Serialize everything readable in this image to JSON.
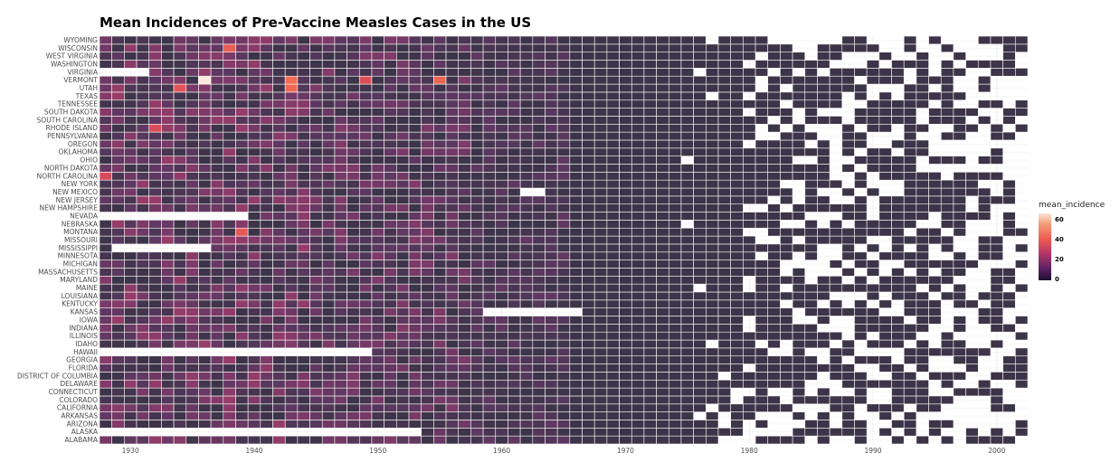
{
  "chart_data": {
    "type": "heatmap",
    "title": "Mean Incidences of Pre-Vaccine Measles Cases in the US",
    "xlabel": "",
    "ylabel": "",
    "x_range": [
      1928,
      2003
    ],
    "x_ticks": [
      "1930",
      "1940",
      "1950",
      "1960",
      "1970",
      "1980",
      "1990",
      "2000"
    ],
    "states": [
      "ALABAMA",
      "ALASKA",
      "ARIZONA",
      "ARKANSAS",
      "CALIFORNIA",
      "COLORADO",
      "CONNECTICUT",
      "DELAWARE",
      "DISTRICT OF COLUMBIA",
      "FLORIDA",
      "GEORGIA",
      "HAWAII",
      "IDAHO",
      "ILLINOIS",
      "INDIANA",
      "IOWA",
      "KANSAS",
      "KENTUCKY",
      "LOUISIANA",
      "MAINE",
      "MARYLAND",
      "MASSACHUSETTS",
      "MICHIGAN",
      "MINNESOTA",
      "MISSISSIPPI",
      "MISSOURI",
      "MONTANA",
      "NEBRASKA",
      "NEVADA",
      "NEW HAMPSHIRE",
      "NEW JERSEY",
      "NEW MEXICO",
      "NEW YORK",
      "NORTH CAROLINA",
      "NORTH DAKOTA",
      "OHIO",
      "OKLAHOMA",
      "OREGON",
      "PENNSYLVANIA",
      "RHODE ISLAND",
      "SOUTH CAROLINA",
      "SOUTH DAKOTA",
      "TENNESSEE",
      "TEXAS",
      "UTAH",
      "VERMONT",
      "VIRGINIA",
      "WASHINGTON",
      "WEST VIRGINIA",
      "WISCONSIN",
      "WYOMING"
    ],
    "legend": {
      "title": "mean_incidence",
      "ticks": [
        0,
        20,
        40,
        60
      ],
      "range": [
        0,
        67
      ],
      "placement": "right"
    },
    "notable_values": [
      {
        "state": "VERMONT",
        "year": 1936,
        "value": 67
      },
      {
        "state": "VERMONT",
        "year": 1943,
        "value": 45
      },
      {
        "state": "UTAH",
        "year": 1943,
        "value": 43
      },
      {
        "state": "WISCONSIN",
        "year": 1938,
        "value": 40
      },
      {
        "state": "VERMONT",
        "year": 1955,
        "value": 42
      },
      {
        "state": "MONTANA",
        "year": 1939,
        "value": 38
      },
      {
        "state": "UTAH",
        "year": 1934,
        "value": 36
      },
      {
        "state": "VERMONT",
        "year": 1949,
        "value": 34
      },
      {
        "state": "RHODE ISLAND",
        "year": 1932,
        "value": 33
      },
      {
        "state": "NORTH CAROLINA",
        "year": 1928,
        "value": 32
      }
    ],
    "missing": [
      {
        "state": "VIRGINIA",
        "from": 1928,
        "to": 1931
      },
      {
        "state": "NEVADA",
        "from": 1928,
        "to": 1939
      },
      {
        "state": "MISSISSIPPI",
        "from": 1929,
        "to": 1936
      },
      {
        "state": "HAWAII",
        "from": 1928,
        "to": 1949
      },
      {
        "state": "ALASKA",
        "from": 1928,
        "to": 1953
      },
      {
        "state": "KANSAS",
        "from": 1959,
        "to": 1966
      },
      {
        "state": "NEW MEXICO",
        "from": 1962,
        "to": 1963
      }
    ]
  }
}
